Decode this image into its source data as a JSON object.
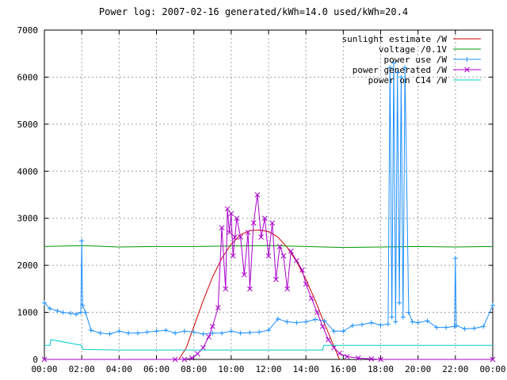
{
  "chart_data": {
    "type": "line",
    "title": "Power log: 2007-02-16 generated/kWh=14.0 used/kWh=20.4",
    "xlabel": "",
    "ylabel": "",
    "x_tick_labels": [
      "00:00",
      "02:00",
      "04:00",
      "06:00",
      "08:00",
      "10:00",
      "12:00",
      "14:00",
      "16:00",
      "18:00",
      "20:00",
      "22:00",
      "00:00"
    ],
    "y_tick_labels": [
      "0",
      "1000",
      "2000",
      "3000",
      "4000",
      "5000",
      "6000",
      "7000"
    ],
    "xlim_hours": [
      0,
      24
    ],
    "ylim": [
      0,
      7000
    ],
    "grid": true,
    "legend_position": "top-right",
    "series": [
      {
        "name": "sunlight estimate /W",
        "color": "#cc0000",
        "style": "line",
        "x_hours": [
          7.2,
          7.6,
          8.0,
          8.5,
          9.0,
          9.5,
          10.0,
          10.5,
          11.0,
          11.5,
          12.0,
          12.5,
          13.0,
          13.5,
          14.0,
          14.5,
          15.0,
          15.5,
          15.8
        ],
        "values": [
          0,
          250,
          700,
          1250,
          1750,
          2150,
          2450,
          2650,
          2740,
          2750,
          2720,
          2600,
          2380,
          2080,
          1700,
          1250,
          750,
          280,
          0
        ]
      },
      {
        "name": "voltage /0.1V",
        "color": "#009900",
        "style": "line",
        "x_hours": [
          0,
          2,
          4,
          6,
          8,
          10,
          12,
          14,
          16,
          18,
          20,
          22,
          24
        ],
        "values": [
          2400,
          2420,
          2390,
          2400,
          2400,
          2410,
          2420,
          2400,
          2380,
          2390,
          2400,
          2390,
          2400
        ]
      },
      {
        "name": "power use /W",
        "color": "#1e90ff",
        "style": "line+marker-plus",
        "x_hours": [
          0,
          0.3,
          0.7,
          1.0,
          1.4,
          1.7,
          1.95,
          2.0,
          2.05,
          2.2,
          2.5,
          3.0,
          3.5,
          4.0,
          4.5,
          5.0,
          5.5,
          6.0,
          6.5,
          7.0,
          7.5,
          8.0,
          8.5,
          9.0,
          9.5,
          10.0,
          10.5,
          11.0,
          11.5,
          12.0,
          12.5,
          13.0,
          13.5,
          14.0,
          14.5,
          15.0,
          15.5,
          16.0,
          16.5,
          17.0,
          17.5,
          18.0,
          18.4,
          18.5,
          18.6,
          18.7,
          18.8,
          18.9,
          19.0,
          19.1,
          19.2,
          19.3,
          19.5,
          19.7,
          20.0,
          20.5,
          21.0,
          21.5,
          21.95,
          22.0,
          22.05,
          22.5,
          23.0,
          23.5,
          24.0
        ],
        "values": [
          1200,
          1080,
          1030,
          1000,
          980,
          960,
          1000,
          2520,
          1150,
          1000,
          620,
          560,
          540,
          600,
          560,
          560,
          580,
          600,
          620,
          560,
          600,
          580,
          540,
          560,
          560,
          600,
          560,
          570,
          580,
          620,
          860,
          800,
          780,
          800,
          850,
          820,
          600,
          600,
          720,
          740,
          780,
          730,
          750,
          6200,
          900,
          6300,
          800,
          6100,
          1200,
          6000,
          900,
          6200,
          1000,
          800,
          780,
          820,
          680,
          680,
          700,
          2150,
          720,
          650,
          660,
          700,
          1150
        ]
      },
      {
        "name": "power generated /W",
        "color": "#aa00cc",
        "style": "line+marker-x",
        "x_hours": [
          0,
          7.0,
          7.5,
          7.9,
          8.2,
          8.5,
          8.8,
          9.0,
          9.3,
          9.5,
          9.7,
          9.8,
          9.9,
          10.0,
          10.1,
          10.2,
          10.3,
          10.5,
          10.7,
          10.9,
          11.0,
          11.2,
          11.4,
          11.6,
          11.8,
          12.0,
          12.2,
          12.4,
          12.6,
          12.8,
          13.0,
          13.2,
          13.5,
          13.8,
          14.0,
          14.3,
          14.6,
          14.9,
          15.2,
          15.5,
          15.8,
          16.2,
          16.8,
          17.5,
          18.0,
          24.0
        ],
        "values": [
          0,
          0,
          0,
          30,
          120,
          250,
          480,
          700,
          1100,
          2800,
          1500,
          3200,
          2700,
          3100,
          2200,
          2600,
          3000,
          2600,
          1800,
          2700,
          1500,
          2900,
          3500,
          2600,
          3000,
          2200,
          2900,
          1700,
          2400,
          2200,
          1500,
          2300,
          2100,
          1900,
          1600,
          1300,
          1000,
          700,
          420,
          250,
          130,
          60,
          30,
          10,
          0,
          0
        ]
      },
      {
        "name": "power on C14 /W",
        "color": "#00cccc",
        "style": "line",
        "x_hours": [
          0,
          0.3,
          0.35,
          2.0,
          2.05,
          4.0,
          6.0,
          8.0,
          10.0,
          12.0,
          14.0,
          14.9,
          14.95,
          16.0,
          18.0,
          20.0,
          22.0,
          24.0
        ],
        "values": [
          300,
          300,
          420,
          300,
          210,
          200,
          200,
          200,
          200,
          200,
          200,
          200,
          300,
          300,
          300,
          300,
          300,
          300
        ]
      }
    ]
  }
}
